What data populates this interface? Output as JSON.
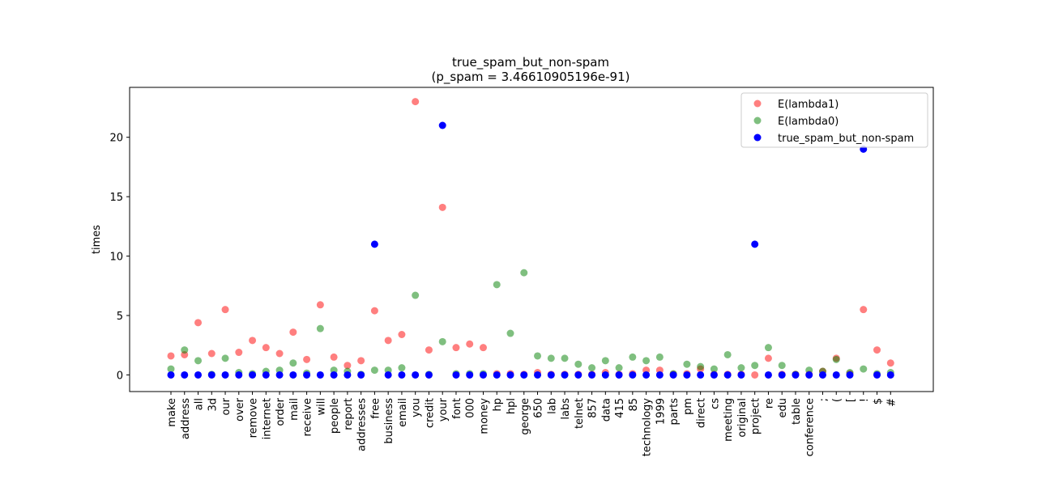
{
  "chart_data": {
    "type": "scatter",
    "title": "true_spam_but_non-spam",
    "subtitle": "(p_spam = 3.46610905196e-91)",
    "xlabel": "",
    "ylabel": "times",
    "ylim": [
      -1.4,
      24.2
    ],
    "yticks": [
      0,
      5,
      10,
      15,
      20
    ],
    "grid": false,
    "legend_position": "top-right",
    "categories": [
      "make",
      "address",
      "all",
      "3d",
      "our",
      "over",
      "remove",
      "internet",
      "order",
      "mail",
      "receive",
      "will",
      "people",
      "report",
      "addresses",
      "free",
      "business",
      "email",
      "you",
      "credit",
      "your",
      "font",
      "000",
      "money",
      "hp",
      "hpl",
      "george",
      "650",
      "lab",
      "labs",
      "telnet",
      "857",
      "data",
      "415",
      "85",
      "technology",
      "1999",
      "parts",
      "pm",
      "direct",
      "cs",
      "meeting",
      "original",
      "project",
      "re",
      "edu",
      "table",
      "conference",
      ";",
      "(",
      "[",
      "!",
      "$",
      "#"
    ],
    "series": [
      {
        "name": "E(lambda1)",
        "color": "#ff0000",
        "alpha": 0.5,
        "values": [
          1.6,
          1.7,
          4.4,
          1.8,
          5.5,
          1.9,
          2.9,
          2.3,
          1.8,
          3.6,
          1.3,
          5.9,
          1.5,
          0.8,
          1.2,
          5.4,
          2.9,
          3.4,
          23.0,
          2.1,
          14.1,
          2.3,
          2.6,
          2.3,
          0.1,
          0.1,
          0.05,
          0.2,
          0.05,
          0.05,
          0.05,
          0.05,
          0.2,
          0.05,
          0.1,
          0.4,
          0.4,
          0.05,
          0.1,
          0.5,
          0.05,
          0.05,
          0.05,
          0.0,
          1.4,
          0.05,
          0.05,
          0.05,
          0.3,
          1.4,
          0.1,
          5.5,
          2.1,
          1.0
        ]
      },
      {
        "name": "E(lambda0)",
        "color": "#008000",
        "alpha": 0.5,
        "values": [
          0.5,
          2.1,
          1.2,
          0.05,
          1.4,
          0.2,
          0.1,
          0.3,
          0.4,
          1.0,
          0.15,
          3.9,
          0.4,
          0.3,
          0.05,
          0.4,
          0.4,
          0.6,
          6.7,
          0.05,
          2.8,
          0.1,
          0.1,
          0.1,
          7.6,
          3.5,
          8.6,
          1.6,
          1.4,
          1.4,
          0.9,
          0.6,
          1.2,
          0.6,
          1.5,
          1.2,
          1.5,
          0.1,
          0.9,
          0.7,
          0.5,
          1.7,
          0.6,
          0.8,
          2.3,
          0.8,
          0.05,
          0.4,
          0.3,
          1.3,
          0.2,
          0.5,
          0.1,
          0.2
        ]
      },
      {
        "name": "true_spam_but_non-spam",
        "color": "#0000ff",
        "alpha": 1.0,
        "values": [
          0,
          0,
          0,
          0,
          0,
          0,
          0,
          0,
          0,
          0,
          0,
          0,
          0,
          0,
          0,
          11,
          0,
          0,
          0,
          0,
          21,
          0,
          0,
          0,
          0,
          0,
          0,
          0,
          0,
          0,
          0,
          0,
          0,
          0,
          0,
          0,
          0,
          0,
          0,
          0,
          0,
          0,
          0,
          11,
          0,
          0,
          0,
          0,
          0,
          0,
          0,
          19,
          0,
          0
        ]
      }
    ]
  }
}
